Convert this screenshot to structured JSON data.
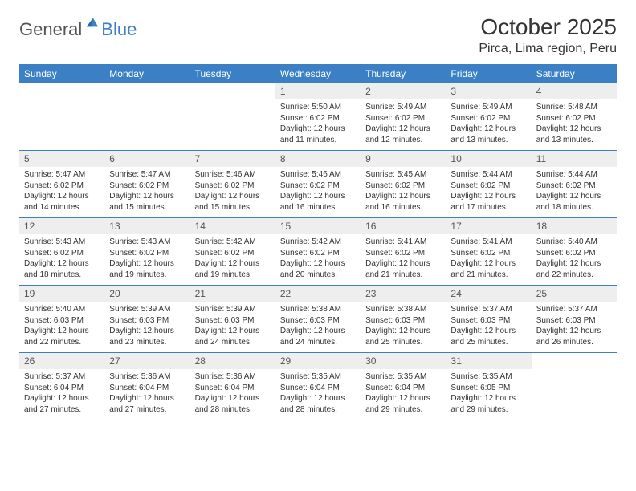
{
  "brand": {
    "part1": "General",
    "part2": "Blue"
  },
  "title": "October 2025",
  "location": "Pirca, Lima region, Peru",
  "colors": {
    "header_bg": "#3b7fc4",
    "header_text": "#ffffff",
    "daynum_bg": "#eeeeee",
    "border": "#3b7fc4",
    "text": "#333333"
  },
  "weekdays": [
    "Sunday",
    "Monday",
    "Tuesday",
    "Wednesday",
    "Thursday",
    "Friday",
    "Saturday"
  ],
  "weeks": [
    [
      {
        "n": "",
        "sr": "",
        "ss": "",
        "dl": ""
      },
      {
        "n": "",
        "sr": "",
        "ss": "",
        "dl": ""
      },
      {
        "n": "",
        "sr": "",
        "ss": "",
        "dl": ""
      },
      {
        "n": "1",
        "sr": "Sunrise: 5:50 AM",
        "ss": "Sunset: 6:02 PM",
        "dl": "Daylight: 12 hours and 11 minutes."
      },
      {
        "n": "2",
        "sr": "Sunrise: 5:49 AM",
        "ss": "Sunset: 6:02 PM",
        "dl": "Daylight: 12 hours and 12 minutes."
      },
      {
        "n": "3",
        "sr": "Sunrise: 5:49 AM",
        "ss": "Sunset: 6:02 PM",
        "dl": "Daylight: 12 hours and 13 minutes."
      },
      {
        "n": "4",
        "sr": "Sunrise: 5:48 AM",
        "ss": "Sunset: 6:02 PM",
        "dl": "Daylight: 12 hours and 13 minutes."
      }
    ],
    [
      {
        "n": "5",
        "sr": "Sunrise: 5:47 AM",
        "ss": "Sunset: 6:02 PM",
        "dl": "Daylight: 12 hours and 14 minutes."
      },
      {
        "n": "6",
        "sr": "Sunrise: 5:47 AM",
        "ss": "Sunset: 6:02 PM",
        "dl": "Daylight: 12 hours and 15 minutes."
      },
      {
        "n": "7",
        "sr": "Sunrise: 5:46 AM",
        "ss": "Sunset: 6:02 PM",
        "dl": "Daylight: 12 hours and 15 minutes."
      },
      {
        "n": "8",
        "sr": "Sunrise: 5:46 AM",
        "ss": "Sunset: 6:02 PM",
        "dl": "Daylight: 12 hours and 16 minutes."
      },
      {
        "n": "9",
        "sr": "Sunrise: 5:45 AM",
        "ss": "Sunset: 6:02 PM",
        "dl": "Daylight: 12 hours and 16 minutes."
      },
      {
        "n": "10",
        "sr": "Sunrise: 5:44 AM",
        "ss": "Sunset: 6:02 PM",
        "dl": "Daylight: 12 hours and 17 minutes."
      },
      {
        "n": "11",
        "sr": "Sunrise: 5:44 AM",
        "ss": "Sunset: 6:02 PM",
        "dl": "Daylight: 12 hours and 18 minutes."
      }
    ],
    [
      {
        "n": "12",
        "sr": "Sunrise: 5:43 AM",
        "ss": "Sunset: 6:02 PM",
        "dl": "Daylight: 12 hours and 18 minutes."
      },
      {
        "n": "13",
        "sr": "Sunrise: 5:43 AM",
        "ss": "Sunset: 6:02 PM",
        "dl": "Daylight: 12 hours and 19 minutes."
      },
      {
        "n": "14",
        "sr": "Sunrise: 5:42 AM",
        "ss": "Sunset: 6:02 PM",
        "dl": "Daylight: 12 hours and 19 minutes."
      },
      {
        "n": "15",
        "sr": "Sunrise: 5:42 AM",
        "ss": "Sunset: 6:02 PM",
        "dl": "Daylight: 12 hours and 20 minutes."
      },
      {
        "n": "16",
        "sr": "Sunrise: 5:41 AM",
        "ss": "Sunset: 6:02 PM",
        "dl": "Daylight: 12 hours and 21 minutes."
      },
      {
        "n": "17",
        "sr": "Sunrise: 5:41 AM",
        "ss": "Sunset: 6:02 PM",
        "dl": "Daylight: 12 hours and 21 minutes."
      },
      {
        "n": "18",
        "sr": "Sunrise: 5:40 AM",
        "ss": "Sunset: 6:02 PM",
        "dl": "Daylight: 12 hours and 22 minutes."
      }
    ],
    [
      {
        "n": "19",
        "sr": "Sunrise: 5:40 AM",
        "ss": "Sunset: 6:03 PM",
        "dl": "Daylight: 12 hours and 22 minutes."
      },
      {
        "n": "20",
        "sr": "Sunrise: 5:39 AM",
        "ss": "Sunset: 6:03 PM",
        "dl": "Daylight: 12 hours and 23 minutes."
      },
      {
        "n": "21",
        "sr": "Sunrise: 5:39 AM",
        "ss": "Sunset: 6:03 PM",
        "dl": "Daylight: 12 hours and 24 minutes."
      },
      {
        "n": "22",
        "sr": "Sunrise: 5:38 AM",
        "ss": "Sunset: 6:03 PM",
        "dl": "Daylight: 12 hours and 24 minutes."
      },
      {
        "n": "23",
        "sr": "Sunrise: 5:38 AM",
        "ss": "Sunset: 6:03 PM",
        "dl": "Daylight: 12 hours and 25 minutes."
      },
      {
        "n": "24",
        "sr": "Sunrise: 5:37 AM",
        "ss": "Sunset: 6:03 PM",
        "dl": "Daylight: 12 hours and 25 minutes."
      },
      {
        "n": "25",
        "sr": "Sunrise: 5:37 AM",
        "ss": "Sunset: 6:03 PM",
        "dl": "Daylight: 12 hours and 26 minutes."
      }
    ],
    [
      {
        "n": "26",
        "sr": "Sunrise: 5:37 AM",
        "ss": "Sunset: 6:04 PM",
        "dl": "Daylight: 12 hours and 27 minutes."
      },
      {
        "n": "27",
        "sr": "Sunrise: 5:36 AM",
        "ss": "Sunset: 6:04 PM",
        "dl": "Daylight: 12 hours and 27 minutes."
      },
      {
        "n": "28",
        "sr": "Sunrise: 5:36 AM",
        "ss": "Sunset: 6:04 PM",
        "dl": "Daylight: 12 hours and 28 minutes."
      },
      {
        "n": "29",
        "sr": "Sunrise: 5:35 AM",
        "ss": "Sunset: 6:04 PM",
        "dl": "Daylight: 12 hours and 28 minutes."
      },
      {
        "n": "30",
        "sr": "Sunrise: 5:35 AM",
        "ss": "Sunset: 6:04 PM",
        "dl": "Daylight: 12 hours and 29 minutes."
      },
      {
        "n": "31",
        "sr": "Sunrise: 5:35 AM",
        "ss": "Sunset: 6:05 PM",
        "dl": "Daylight: 12 hours and 29 minutes."
      },
      {
        "n": "",
        "sr": "",
        "ss": "",
        "dl": ""
      }
    ]
  ]
}
